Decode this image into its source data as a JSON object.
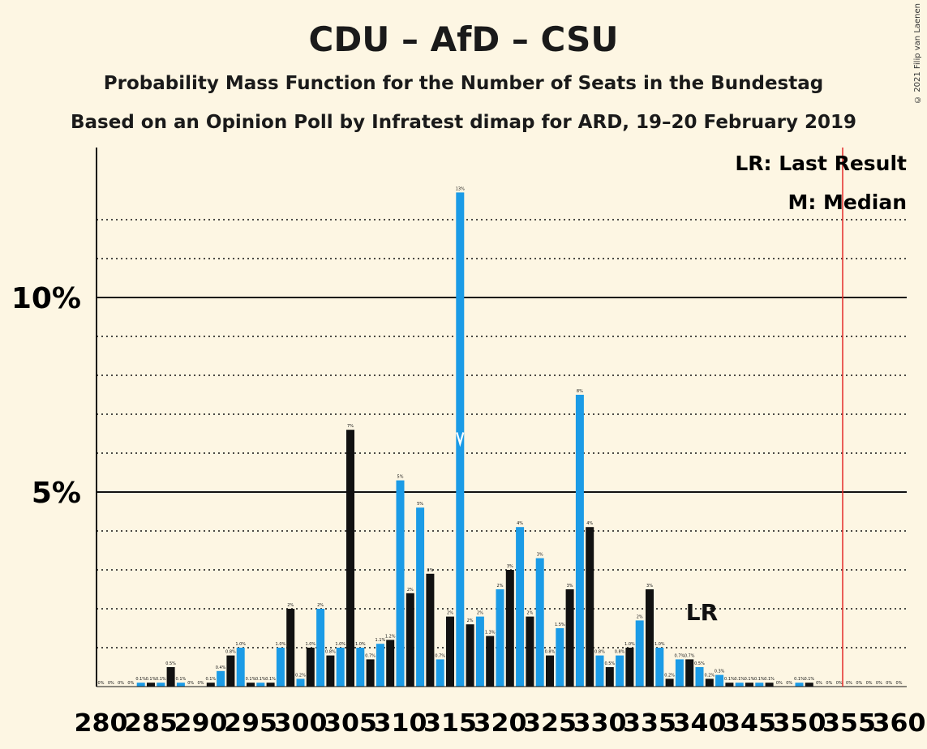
{
  "title": "CDU – AfD – CSU",
  "subtitle": "Probability Mass Function for the Number of Seats in the Bundestag",
  "subtitle2": "Based on an Opinion Poll by Infratest dimap for ARD, 19–20 February 2019",
  "copyright": "© 2021 Filip van Laenen",
  "legend": {
    "lr": "LR: Last Result",
    "m": "M: Median"
  },
  "colors": {
    "background": "#fdf6e3",
    "blue": "#1b9be6",
    "black": "#111111",
    "majority_line": "#e32b2b"
  },
  "chart_data": {
    "type": "bar",
    "x": [
      280,
      281,
      282,
      283,
      284,
      285,
      286,
      287,
      288,
      289,
      290,
      291,
      292,
      293,
      294,
      295,
      296,
      297,
      298,
      299,
      300,
      301,
      302,
      303,
      304,
      305,
      306,
      307,
      308,
      309,
      310,
      311,
      312,
      313,
      314,
      315,
      316,
      317,
      318,
      319,
      320,
      321,
      322,
      323,
      324,
      325,
      326,
      327,
      328,
      329,
      330,
      331,
      332,
      333,
      334,
      335,
      336,
      337,
      338,
      339,
      340,
      341,
      342,
      343,
      344,
      345,
      346,
      347,
      348,
      349,
      350,
      351,
      352,
      353,
      354,
      355,
      356,
      357,
      358,
      359,
      360
    ],
    "values": [
      0,
      0,
      0,
      0,
      0.1,
      0.1,
      0.1,
      0.5,
      0.1,
      0,
      0,
      0.1,
      0.4,
      0.8,
      1.0,
      0.1,
      0.1,
      0.1,
      1.0,
      2.0,
      0.2,
      1.0,
      2.0,
      0.8,
      1.0,
      6.6,
      1.0,
      0.7,
      1.1,
      1.2,
      5.3,
      2.4,
      4.6,
      2.9,
      0.7,
      1.8,
      12.7,
      1.6,
      1.8,
      1.3,
      2.5,
      3.0,
      4.1,
      1.8,
      3.3,
      0.8,
      1.5,
      2.5,
      7.5,
      4.1,
      0.8,
      0.5,
      0.8,
      1.0,
      1.7,
      2.5,
      1.0,
      0.2,
      0.7,
      0.7,
      0.5,
      0.2,
      0.3,
      0.1,
      0.1,
      0.1,
      0.1,
      0.1,
      0,
      0,
      0.1,
      0.1,
      0,
      0,
      0,
      0,
      0,
      0,
      0,
      0,
      0
    ],
    "labels": [
      "0%",
      "0%",
      "0%",
      "0%",
      "0.1%",
      "0.1%",
      "0.1%",
      "0.5%",
      "0.1%",
      "0%",
      "0%",
      "0.1%",
      "0.4%",
      "0.8%",
      "1.0%",
      "0.1%",
      "0.1%",
      "0.1%",
      "1.0%",
      "2%",
      "0.2%",
      "1.0%",
      "2%",
      "0.8%",
      "1.0%",
      "7%",
      "1.0%",
      "0.7%",
      "1.1%",
      "1.2%",
      "5%",
      "2%",
      "5%",
      "3%",
      "0.7%",
      "2%",
      "13%",
      "2%",
      "2%",
      "1.3%",
      "2%",
      "3%",
      "4%",
      "2%",
      "3%",
      "0.8%",
      "1.5%",
      "3%",
      "8%",
      "4%",
      "0.8%",
      "0.5%",
      "0.8%",
      "1.0%",
      "2%",
      "3%",
      "1.0%",
      "0.2%",
      "0.7%",
      "0.7%",
      "0.5%",
      "0.2%",
      "0.3%",
      "0.1%",
      "0.1%",
      "0.1%",
      "0.1%",
      "0.1%",
      "0%",
      "0%",
      "0.1%",
      "0.1%",
      "0%",
      "0%",
      "0%",
      "0%",
      "0%",
      "0%",
      "0%",
      "0%",
      "0%"
    ],
    "tick_labels": [
      "280",
      "285",
      "290",
      "295",
      "300",
      "305",
      "310",
      "315",
      "320",
      "325",
      "330",
      "335",
      "340",
      "345",
      "350",
      "355",
      "360"
    ],
    "y_tick_labels": [
      "5%",
      "10%"
    ],
    "ylim": [
      0,
      13.5
    ],
    "median_seat": 316,
    "last_result_seat": 340,
    "last_result_label": "LR",
    "majority_seat": 355
  }
}
